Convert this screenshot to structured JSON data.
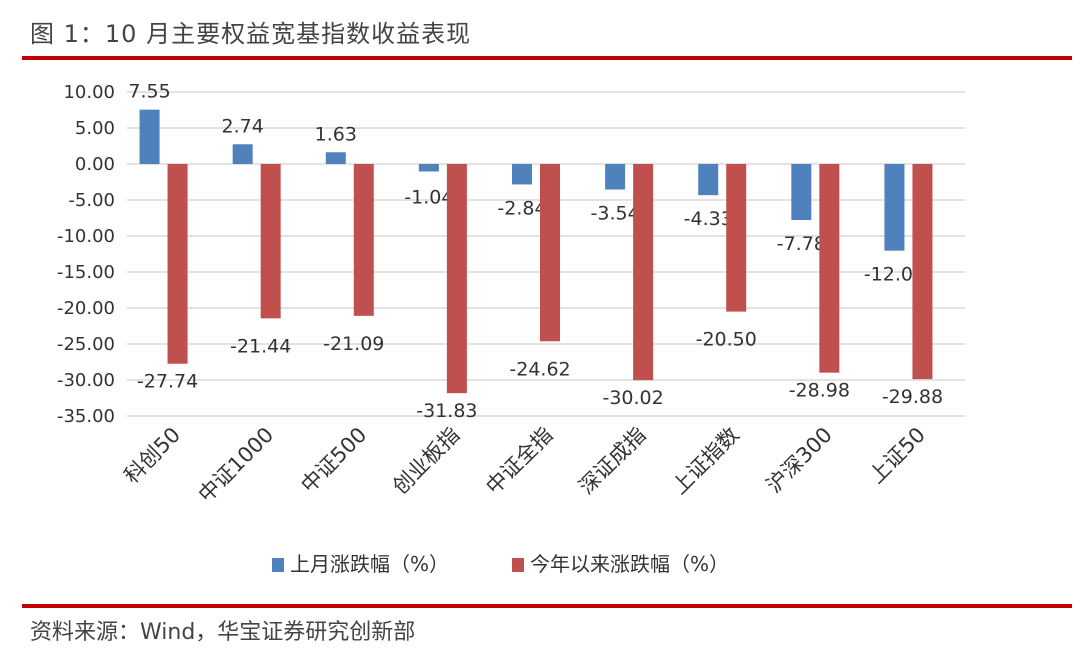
{
  "figure_title": "图 1：10 月主要权益宽基指数收益表现",
  "source": "资料来源：Wind，华宝证券研究创新部",
  "chart_data": {
    "type": "bar",
    "title": "",
    "xlabel": "",
    "ylabel": "",
    "categories": [
      "科创50",
      "中证1000",
      "中证500",
      "创业板指",
      "中证全指",
      "深证成指",
      "上证指数",
      "沪深300",
      "上证50"
    ],
    "series": [
      {
        "name": "上月涨跌幅（%）",
        "color": "#4f81bd",
        "values": [
          7.55,
          2.74,
          1.63,
          -1.04,
          -2.84,
          -3.54,
          -4.33,
          -7.78,
          -12.04
        ],
        "labels": [
          "7.55",
          "2.74",
          "1.63",
          "-1.04",
          "-2.84",
          "-3.54",
          "-4.33",
          "-7.78",
          "-12.04"
        ]
      },
      {
        "name": "今年以来涨跌幅（%）",
        "color": "#c0504d",
        "values": [
          -27.74,
          -21.44,
          -21.09,
          -31.83,
          -24.62,
          -30.02,
          -20.5,
          -28.98,
          -29.88
        ],
        "labels": [
          "-27.74",
          "-21.44",
          "-21.09",
          "-31.83",
          "-24.62",
          "-30.02",
          "-20.50",
          "-28.98",
          "-29.88"
        ]
      }
    ],
    "ylim": [
      -35,
      10
    ],
    "yticks": [
      "10.00",
      "5.00",
      "0.00",
      "-5.00",
      "-10.00",
      "-15.00",
      "-20.00",
      "-25.00",
      "-30.00",
      "-35.00"
    ],
    "grid": true,
    "legend": "bottom"
  }
}
